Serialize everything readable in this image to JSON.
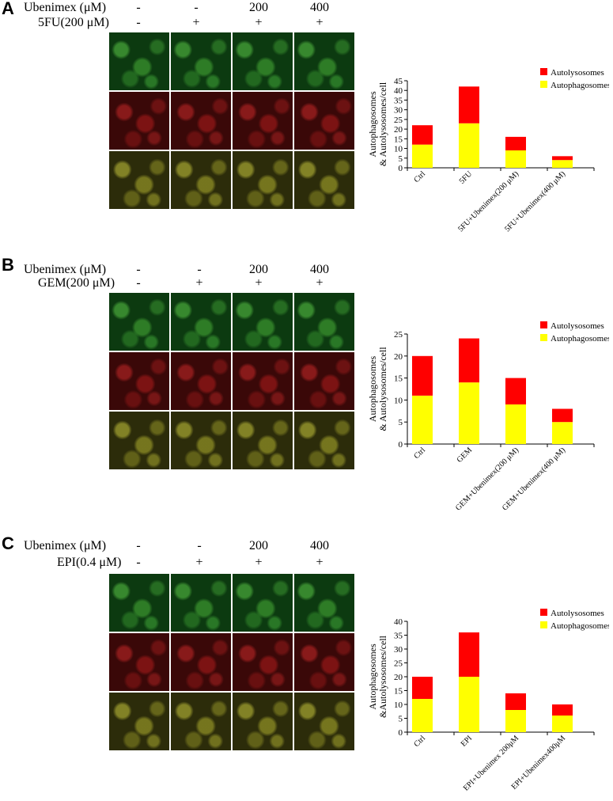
{
  "colors": {
    "autolysosomes": "#ff0000",
    "autophagosomes": "#ffff00"
  },
  "panels": [
    {
      "letter": "A",
      "ubenimex_label": "Ubenimex (μM)",
      "drug_label": "5FU(200 μM)",
      "ubenimex_values": [
        "-",
        "-",
        "200",
        "400"
      ],
      "drug_values": [
        "-",
        "+",
        "+",
        "+"
      ]
    },
    {
      "letter": "B",
      "ubenimex_label": "Ubenimex (μM)",
      "drug_label": "GEM(200 μM)",
      "ubenimex_values": [
        "-",
        "-",
        "200",
        "400"
      ],
      "drug_values": [
        "-",
        "+",
        "+",
        "+"
      ]
    },
    {
      "letter": "C",
      "ubenimex_label": "Ubenimex (μM)",
      "drug_label": "EPI(0.4 μM)",
      "ubenimex_values": [
        "-",
        "-",
        "200",
        "400"
      ],
      "drug_values": [
        "-",
        "+",
        "+",
        "+"
      ]
    }
  ],
  "chart_data": [
    {
      "type": "bar",
      "stacked": true,
      "categories": [
        "Ctrl",
        "5FU",
        "5FU+Ubenimex(200 μM)",
        "5FU+Ubenimex(400 μM)"
      ],
      "series": [
        {
          "name": "Autophagosomes",
          "values": [
            12,
            23,
            9,
            4
          ]
        },
        {
          "name": "Autolysosomes",
          "values": [
            10,
            19,
            7,
            2
          ]
        }
      ],
      "legend_order": [
        "Autolysosomes",
        "Autophagosomes"
      ],
      "ylabel_lines": [
        "Autophagosomes",
        "& Autolysosomes/cell"
      ],
      "ylim": [
        0,
        45
      ],
      "yticks": [
        0,
        5,
        10,
        15,
        20,
        25,
        30,
        35,
        40,
        45
      ],
      "legend": "top-right"
    },
    {
      "type": "bar",
      "stacked": true,
      "categories": [
        "Ctrl",
        "GEM",
        "GEM+Ubenimex(200 μM)",
        "GEM+Ubenimex(400 μM)"
      ],
      "series": [
        {
          "name": "Autophagosomes",
          "values": [
            11,
            14,
            9,
            5
          ]
        },
        {
          "name": "Autolysosomes",
          "values": [
            9,
            10,
            6,
            3
          ]
        }
      ],
      "legend_order": [
        "Autolysosomes",
        "Autophagosomes"
      ],
      "ylabel_lines": [
        "Autophagosomes",
        "& Autolysosomes/cell"
      ],
      "ylim": [
        0,
        25
      ],
      "yticks": [
        0,
        5,
        10,
        15,
        20,
        25
      ],
      "legend": "top-right"
    },
    {
      "type": "bar",
      "stacked": true,
      "categories": [
        "Ctrl",
        "EPI",
        "EPI+Ubenimex 200μM",
        "EPI+Ubenimex400μM"
      ],
      "series": [
        {
          "name": "Autophagosomes",
          "values": [
            12,
            20,
            8,
            6
          ]
        },
        {
          "name": "Autolysosomes",
          "values": [
            8,
            16,
            6,
            4
          ]
        }
      ],
      "legend_order": [
        "Autolysosomes",
        "Autophagosomes"
      ],
      "ylabel_lines": [
        "Autophagosomes",
        "&Autolysosomes/cell"
      ],
      "ylim": [
        0,
        40
      ],
      "yticks": [
        0,
        5,
        10,
        15,
        20,
        25,
        30,
        35,
        40
      ],
      "legend": "top-right"
    }
  ]
}
